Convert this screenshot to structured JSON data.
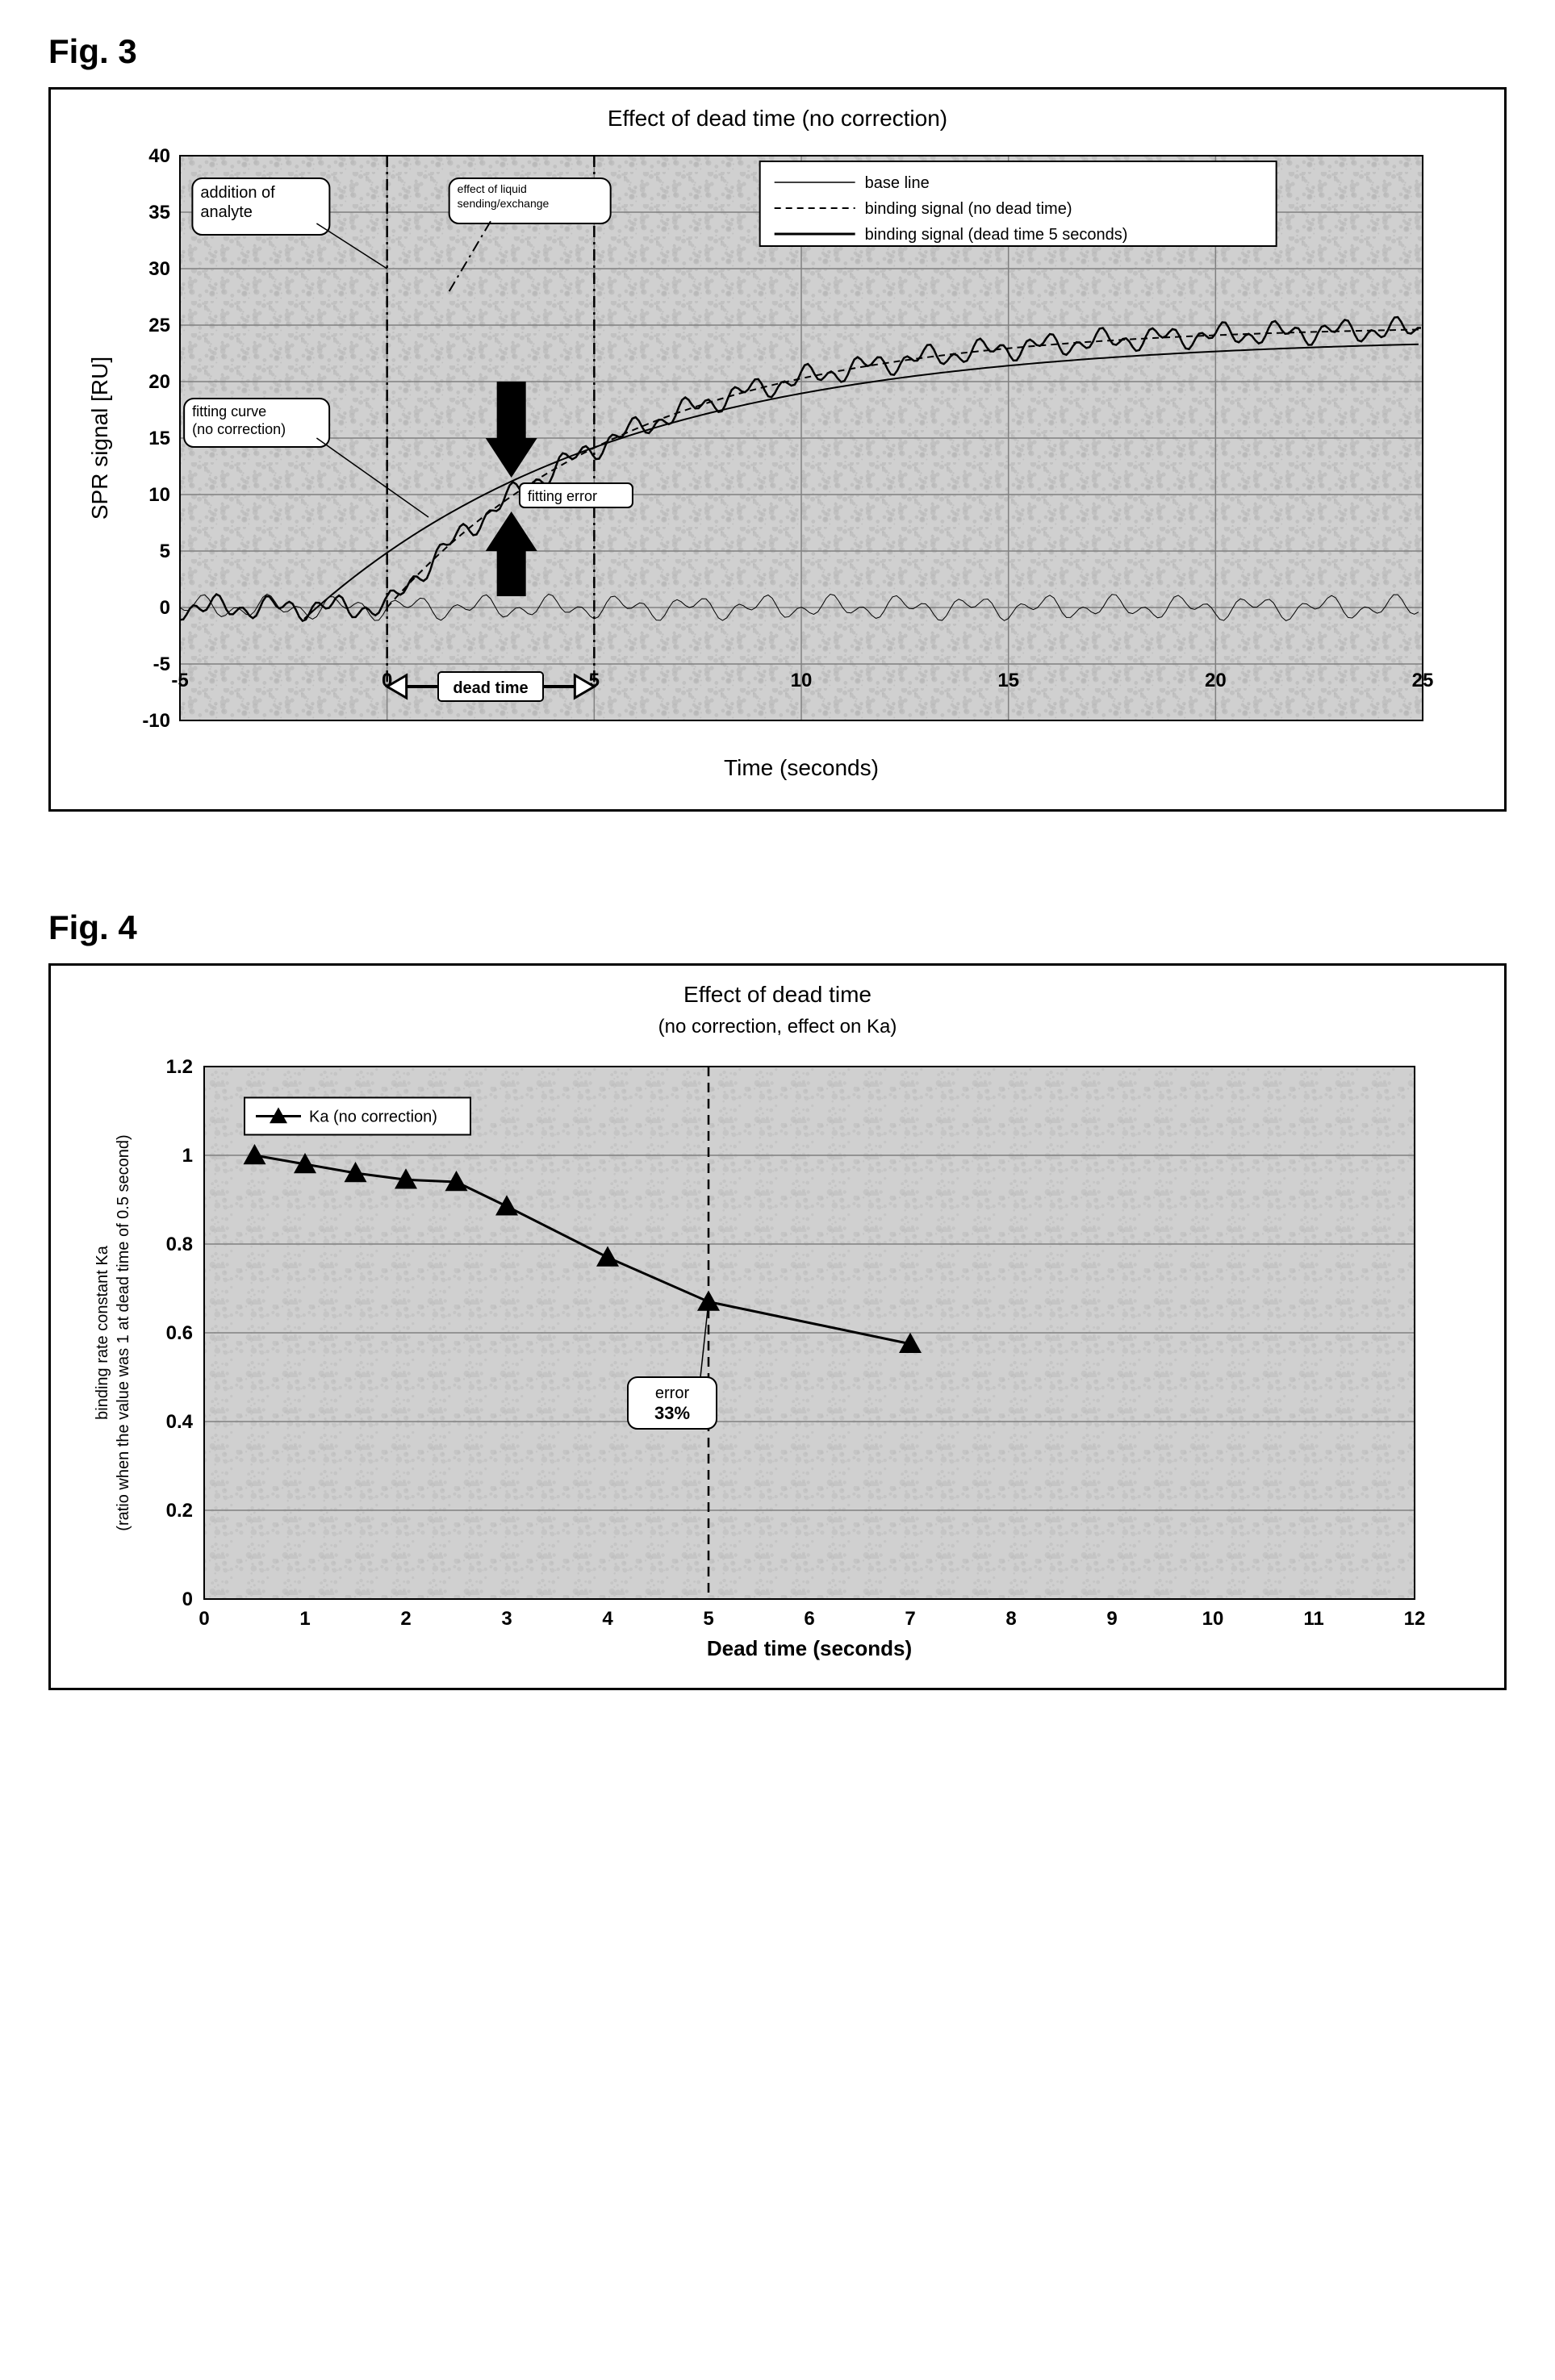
{
  "fig3": {
    "label": "Fig. 3",
    "title": "Effect of dead time (no correction)",
    "xlabel": "Time (seconds)",
    "ylabel": "SPR signal [RU]",
    "xlim": [
      -5,
      25
    ],
    "ylim": [
      -10,
      40
    ],
    "xticks": [
      -5,
      0,
      5,
      10,
      15,
      20,
      25
    ],
    "yticks": [
      -10,
      -5,
      0,
      5,
      10,
      15,
      20,
      25,
      30,
      35,
      40
    ],
    "legend": {
      "items": [
        {
          "label": "base line",
          "style": "solid-thin",
          "color": "#000000"
        },
        {
          "label": "binding signal (no dead time)",
          "style": "dashed",
          "color": "#000000"
        },
        {
          "label": "binding signal (dead time 5 seconds)",
          "style": "solid-thick",
          "color": "#000000"
        }
      ]
    },
    "callouts": {
      "addition_of_analyte": "addition of\nanalyte",
      "effect_liquid": "effect of liquid\nsending/exchange",
      "fitting_curve": "fitting curve\n(no correction)",
      "fitting_error": "fitting error",
      "dead_time": "dead time"
    },
    "grid_color": "#808080",
    "plot_bg": "#d0d0d0",
    "noise_amplitude": 1.2,
    "binding_curve_max": 25,
    "binding_curve_tau": 6,
    "dead_time_shift": 5
  },
  "fig4": {
    "label": "Fig. 4",
    "title": "Effect of dead time",
    "subtitle": "(no correction,  effect on Ka)",
    "xlabel": "Dead time (seconds)",
    "ylabel": "binding rate constant Ka\n(ratio when the value was 1 at dead time of 0.5 second)",
    "xlim": [
      0,
      12
    ],
    "ylim": [
      0,
      1.2
    ],
    "xticks": [
      0,
      1,
      2,
      3,
      4,
      5,
      6,
      7,
      8,
      9,
      10,
      11,
      12
    ],
    "yticks": [
      0,
      0.2,
      0.4,
      0.6,
      0.8,
      1,
      1.2
    ],
    "legend_label": "Ka (no correction)",
    "data_points": [
      {
        "x": 0.5,
        "y": 1.0
      },
      {
        "x": 1.0,
        "y": 0.98
      },
      {
        "x": 1.5,
        "y": 0.96
      },
      {
        "x": 2.0,
        "y": 0.945
      },
      {
        "x": 2.5,
        "y": 0.94
      },
      {
        "x": 3.0,
        "y": 0.885
      },
      {
        "x": 4.0,
        "y": 0.77
      },
      {
        "x": 5.0,
        "y": 0.67
      },
      {
        "x": 7.0,
        "y": 0.575
      }
    ],
    "error_label": "error\n33%",
    "marker_color": "#000000",
    "line_color": "#000000",
    "grid_color": "#808080",
    "plot_bg": "#d0d0d0",
    "vline_x": 5
  }
}
